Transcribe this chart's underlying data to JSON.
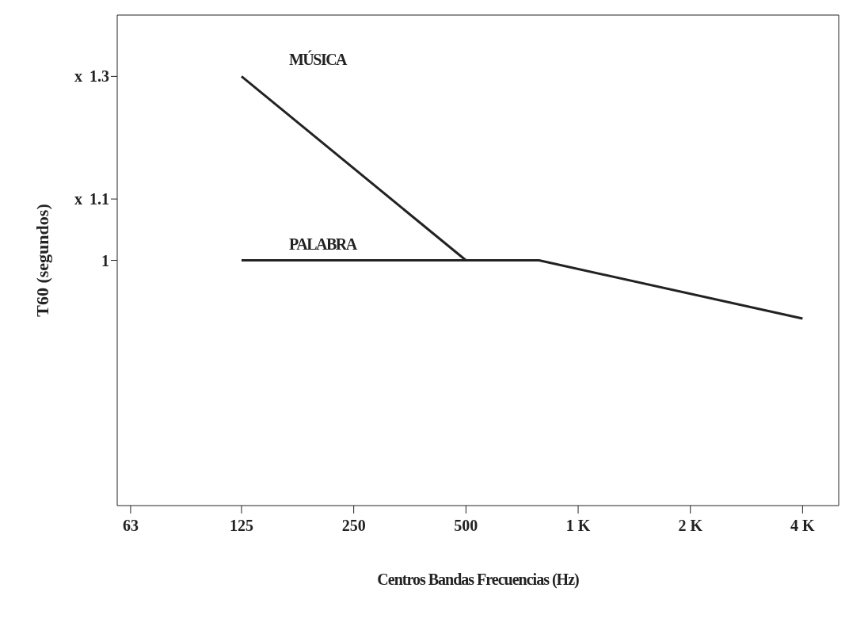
{
  "chart_data": {
    "type": "line",
    "xlabel": "Centros Bandas Frecuencias (Hz)",
    "ylabel": "T60  (segundos)",
    "series": [
      {
        "name": "MÚSICA",
        "color": "#222222",
        "x": [
          125,
          500
        ],
        "values": [
          1.3,
          1.0
        ]
      },
      {
        "name": "PALABRA",
        "color": "#222222",
        "x": [
          125,
          785,
          4000
        ],
        "values": [
          1.0,
          1.0,
          0.905
        ]
      }
    ],
    "annotations": [
      "x",
      "x"
    ],
    "log": "x",
    "xlim": [
      58,
      5000
    ],
    "xticks": [
      63,
      125,
      250,
      500,
      {
        "value": 1000,
        "label": "1 K"
      },
      {
        "value": 2000,
        "label": "2 K"
      },
      {
        "value": 4000,
        "label": "4 K"
      }
    ],
    "ylim": [
      0.6,
      1.4
    ],
    "yticks": [
      1.3,
      1.1,
      1
    ],
    "grid": false,
    "legend": false,
    "marker": "none",
    "line_style": "solid"
  }
}
